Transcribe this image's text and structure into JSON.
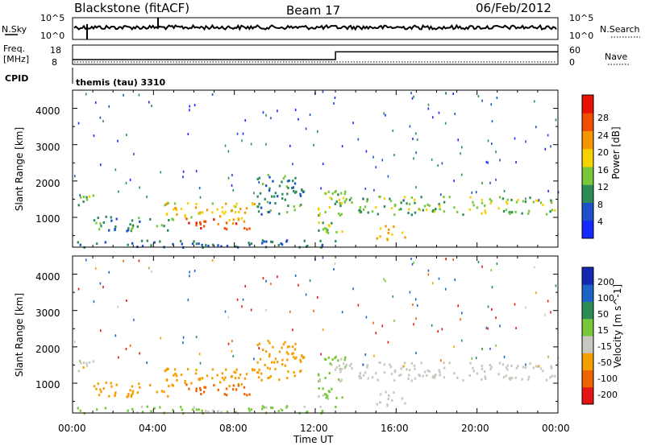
{
  "header": {
    "site": "Blackstone (fitACF)",
    "beam": "Beam 17",
    "date": "06/Feb/2012"
  },
  "noise_panel": {
    "left_label": "N.Sky",
    "right_label": "N.Search",
    "left_ticks": [
      "10^5",
      "10^0"
    ],
    "right_ticks": [
      "10^5",
      "10^0"
    ]
  },
  "freq_panel": {
    "left_label_1": "Freq.",
    "left_label_2": "[MHz]",
    "right_label": "Nave",
    "left_ticks": [
      "18",
      "8"
    ],
    "right_ticks": [
      "60",
      "0"
    ],
    "freq_steps": [
      {
        "t0": 0.0,
        "t1": 13.0,
        "value": 10.5
      },
      {
        "t0": 13.0,
        "t1": 24.0,
        "value": 14.5
      }
    ]
  },
  "cpid": {
    "label": "CPID",
    "text": "themis (tau) 3310"
  },
  "power_panel": {
    "ylabel": "Slant Range [km]",
    "yticks": [
      "4000",
      "3000",
      "2000",
      "1000"
    ],
    "colorbar_label": "Power [dB]",
    "colorbar_ticks": [
      "28",
      "24",
      "20",
      "16",
      "12",
      "8",
      "4"
    ],
    "colors": [
      "#1428ff",
      "#1e50c8",
      "#2b8c58",
      "#78c83c",
      "#f5d200",
      "#f59600",
      "#f04e00",
      "#e61400"
    ]
  },
  "velocity_panel": {
    "ylabel": "Slant Range [km]",
    "yticks": [
      "4000",
      "3000",
      "2000",
      "1000"
    ],
    "colorbar_label": "Velocity [m s^-1]",
    "colorbar_ticks": [
      "200",
      "100",
      "50",
      "15",
      "-15",
      "-50",
      "-100",
      "-200"
    ],
    "colors": [
      "#1428b4",
      "#1e64c8",
      "#2b8c58",
      "#78c83c",
      "#c8c8c0",
      "#f5a000",
      "#f06400",
      "#e61414"
    ]
  },
  "x_axis": {
    "label": "Time UT",
    "ticks": [
      "00:00",
      "04:00",
      "08:00",
      "12:00",
      "16:00",
      "20:00",
      "00:00"
    ]
  },
  "chart_data": {
    "type": "heatmap",
    "x_range_hours": [
      0,
      24
    ],
    "y_range_km": [
      180,
      4500
    ],
    "features": [
      {
        "t0": 0.0,
        "t1": 1.0,
        "r0": 1350,
        "r1": 1700,
        "power_dB": 14,
        "velocity": -10
      },
      {
        "t0": 1.0,
        "t1": 5.0,
        "r0": 650,
        "r1": 1050,
        "power_dB": 10,
        "velocity": -40
      },
      {
        "t0": 4.5,
        "t1": 9.0,
        "r0": 950,
        "r1": 1450,
        "power_dB": 18,
        "velocity": -40
      },
      {
        "t0": 5.5,
        "t1": 9.0,
        "r0": 700,
        "r1": 1000,
        "power_dB": 26,
        "velocity": -60
      },
      {
        "t0": 9.0,
        "t1": 11.5,
        "r0": 1100,
        "r1": 2200,
        "power_dB": 10,
        "velocity": -40
      },
      {
        "t0": 12.0,
        "t1": 13.5,
        "r0": 600,
        "r1": 1800,
        "power_dB": 14,
        "velocity": 20
      },
      {
        "t0": 13.0,
        "t1": 24.0,
        "r0": 1100,
        "r1": 1600,
        "power_dB": 14,
        "velocity": -5
      },
      {
        "t0": 15.0,
        "t1": 16.5,
        "r0": 400,
        "r1": 800,
        "power_dB": 20,
        "velocity": -5
      },
      {
        "t0": 0.0,
        "t1": 13.0,
        "r0": 200,
        "r1": 400,
        "power_dB": 8,
        "velocity": 20
      }
    ]
  }
}
